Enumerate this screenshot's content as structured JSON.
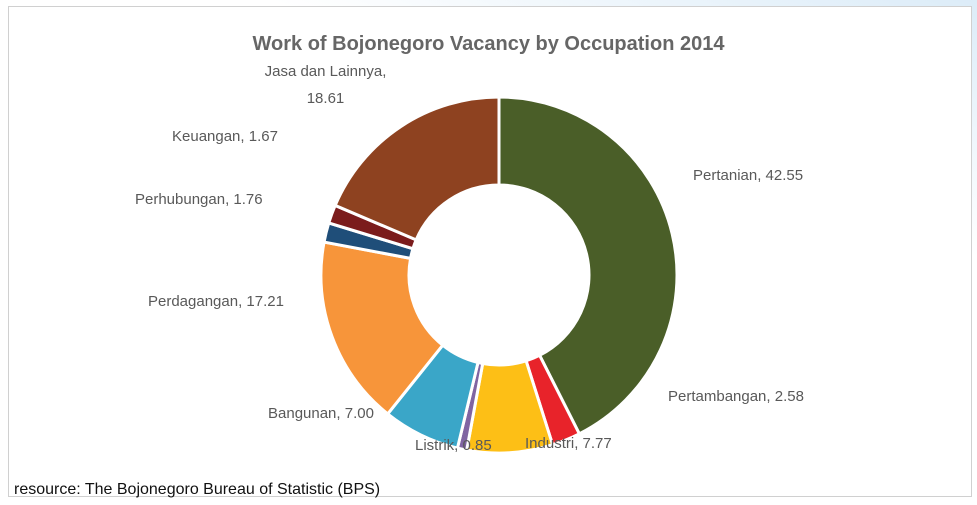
{
  "chart_data": {
    "type": "donut",
    "title": "Work of Bojonegoro Vacancy by Occupation 2014",
    "values": [
      42.55,
      2.58,
      7.77,
      0.85,
      7,
      17.21,
      1.76,
      1.67,
      18.61
    ],
    "value_labels": [
      "Pertanian, 42.55",
      "Pertambangan, 2.58",
      "Industri, 7.77",
      "Listrik, 0.85",
      "Bangunan, 7.00",
      "Perdagangan, 17.21",
      "Perhubungan, 1.76",
      "Keuangan, 1.67",
      "Jasa dan Lainnya, 18.61"
    ],
    "colors": [
      "#4a5e28",
      "#e8232a",
      "#fdbf16",
      "#8064a2",
      "#3aa6c8",
      "#f7953a",
      "#1f4e79",
      "#7b1c1c",
      "#8e4220"
    ],
    "source": "resource: The Bojonegoro Bureau of Statistic (BPS)"
  }
}
